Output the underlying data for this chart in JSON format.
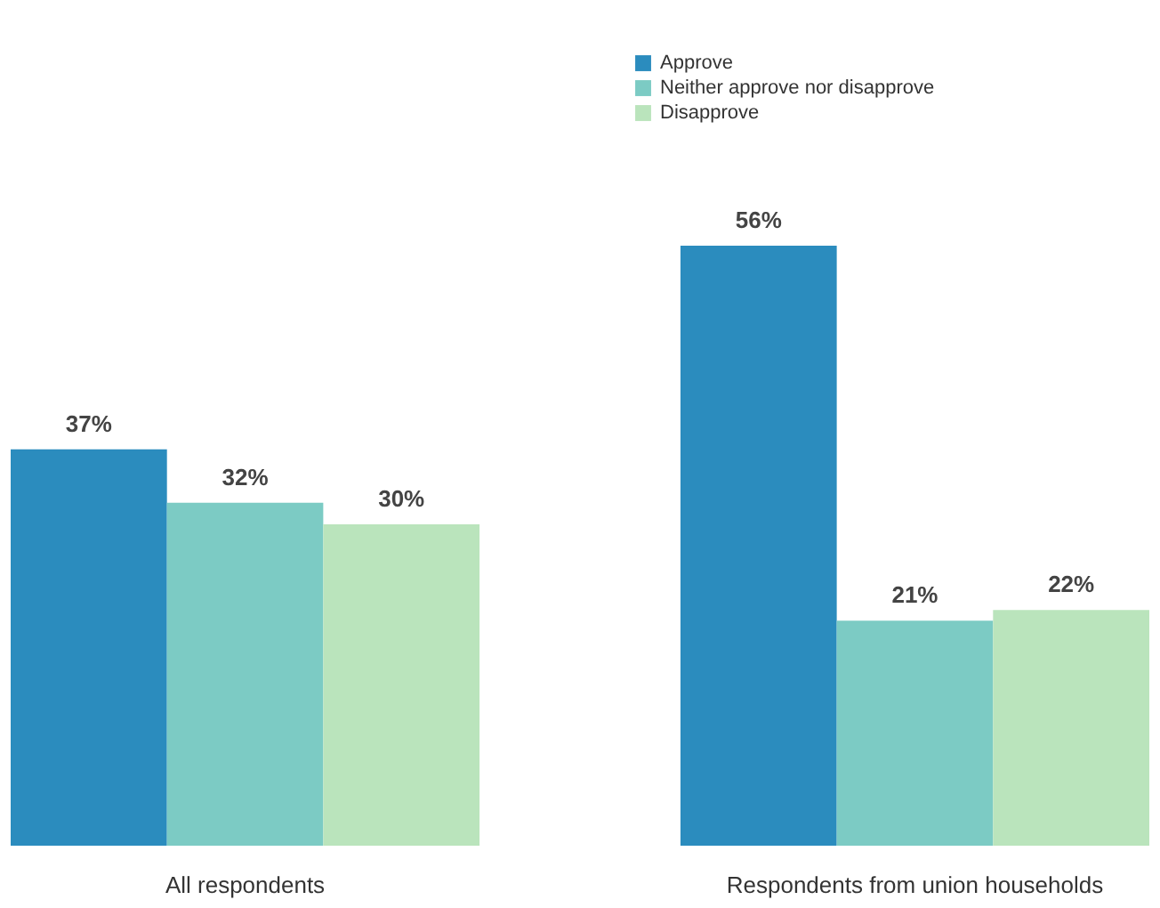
{
  "chart_data": {
    "type": "bar",
    "categories": [
      "All respondents",
      "Respondents from union households"
    ],
    "series": [
      {
        "name": "Approve",
        "color": "#2b8cbe",
        "values": [
          37,
          56
        ],
        "value_labels": [
          "37%",
          "56%"
        ]
      },
      {
        "name": "Neither approve nor disapprove",
        "color": "#7ccbc4",
        "values": [
          32,
          21
        ],
        "value_labels": [
          "32%",
          "21%"
        ]
      },
      {
        "name": "Disapprove",
        "color": "#bae4bc",
        "values": [
          30,
          22
        ],
        "value_labels": [
          "30%",
          "22%"
        ]
      }
    ],
    "legend": "top",
    "grid": false
  }
}
